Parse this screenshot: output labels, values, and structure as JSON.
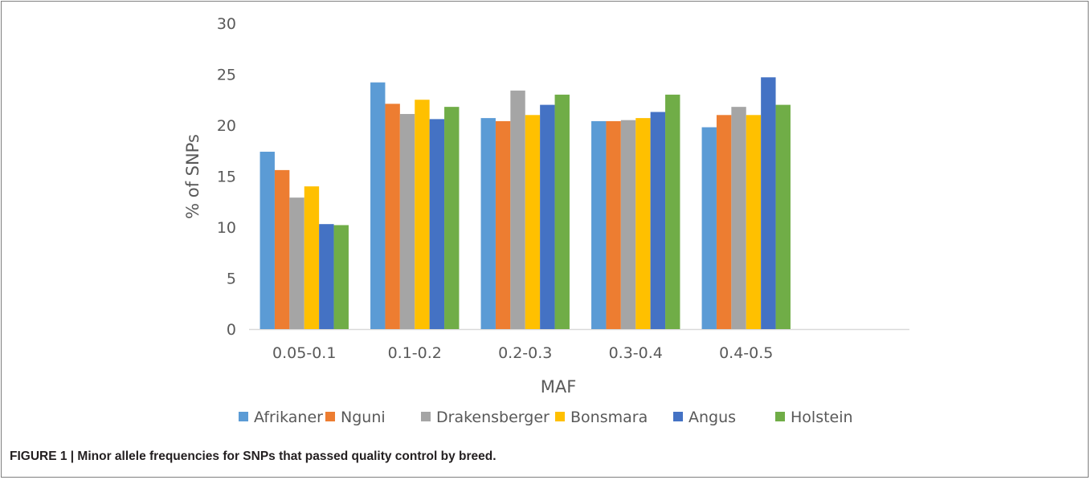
{
  "caption": "FIGURE 1 | Minor allele frequencies for SNPs that passed quality control by breed.",
  "chart_data": {
    "type": "bar",
    "title": "",
    "xlabel": "MAF",
    "ylabel": "% of SNPs",
    "ylim": [
      0,
      30
    ],
    "yticks": [
      0,
      5,
      10,
      15,
      20,
      25,
      30
    ],
    "grid": false,
    "legend_position": "bottom",
    "categories": [
      "0.05-0.1",
      "0.1-0.2",
      "0.2-0.3",
      "0.3-0.4",
      "0.4-0.5"
    ],
    "series": [
      {
        "name": "Afrikaner",
        "color": "#5b9bd5",
        "values": [
          17.4,
          24.2,
          20.7,
          20.4,
          19.8
        ]
      },
      {
        "name": "Nguni",
        "color": "#ed7d31",
        "values": [
          15.6,
          22.1,
          20.4,
          20.4,
          21.0
        ]
      },
      {
        "name": "Drakensberger",
        "color": "#a5a5a5",
        "values": [
          12.9,
          21.1,
          23.4,
          20.5,
          21.8
        ]
      },
      {
        "name": "Bonsmara",
        "color": "#ffc000",
        "values": [
          14.0,
          22.5,
          21.0,
          20.7,
          21.0
        ]
      },
      {
        "name": "Angus",
        "color": "#4472c4",
        "values": [
          10.3,
          20.6,
          22.0,
          21.3,
          24.7
        ]
      },
      {
        "name": "Holstein",
        "color": "#70ad47",
        "values": [
          10.2,
          21.8,
          23.0,
          23.0,
          22.0
        ]
      }
    ]
  }
}
